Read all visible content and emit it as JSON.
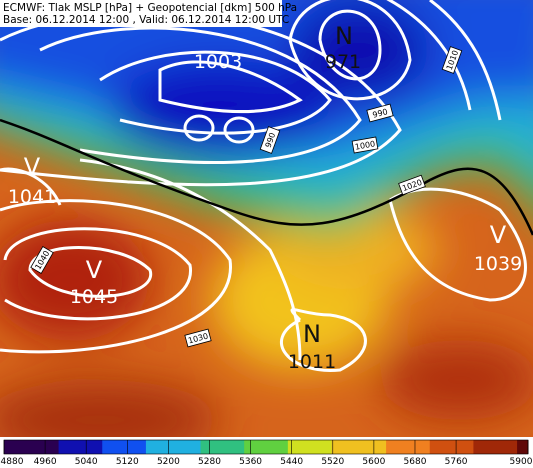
{
  "header": {
    "line1": "ECMWF: Tlak MSLP [hPa] + Geopotencial [dkm] 500 hPa",
    "line2": "Base: 06.12.2014 12:00 , Valid: 06.12.2014 12:00 UTC"
  },
  "pressure_centers": [
    {
      "symbol": "N",
      "value": 971
    },
    {
      "value": 1003
    },
    {
      "symbol": "V",
      "value": 1041
    },
    {
      "symbol": "V",
      "value": 1045
    },
    {
      "symbol": "N",
      "value": 1011
    },
    {
      "symbol": "V",
      "value": 1039
    }
  ],
  "isobar_labels": [
    1010,
    990,
    990,
    1000,
    1020,
    1040,
    1030
  ],
  "colorbar": {
    "ticks": [
      4880,
      4960,
      5040,
      5120,
      5200,
      5280,
      5360,
      5440,
      5520,
      5600,
      5680,
      5760,
      5900
    ]
  }
}
